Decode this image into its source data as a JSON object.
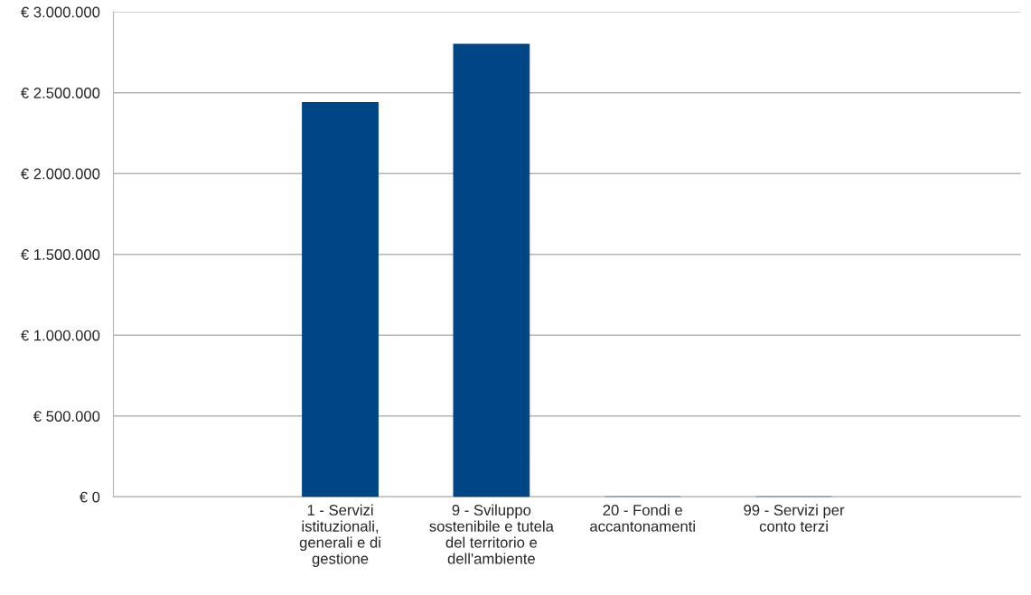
{
  "chart_data": {
    "type": "bar",
    "categories": [
      null,
      "1 - Servizi\nistituzionali,\ngenerali e di\ngestione",
      "9 - Sviluppo\nsostenibile e tutela\ndel territorio e\ndell'ambiente",
      "20 - Fondi e\naccantonamenti",
      "99 - Servizi per\nconto terzi",
      null
    ],
    "values": [
      null,
      2440000,
      2800000,
      0,
      0,
      null
    ],
    "color": "#004586",
    "ylim": [
      0,
      3000000
    ],
    "yticks": [
      {
        "value": 0,
        "label": "€ 0"
      },
      {
        "value": 500000,
        "label": "€ 500.000"
      },
      {
        "value": 1000000,
        "label": "€ 1.000.000"
      },
      {
        "value": 1500000,
        "label": "€ 1.500.000"
      },
      {
        "value": 2000000,
        "label": "€ 2.000.000"
      },
      {
        "value": 2500000,
        "label": "€ 2.500.000"
      },
      {
        "value": 3000000,
        "label": "€ 3.000.000"
      }
    ],
    "grid": "y",
    "legend": false
  }
}
